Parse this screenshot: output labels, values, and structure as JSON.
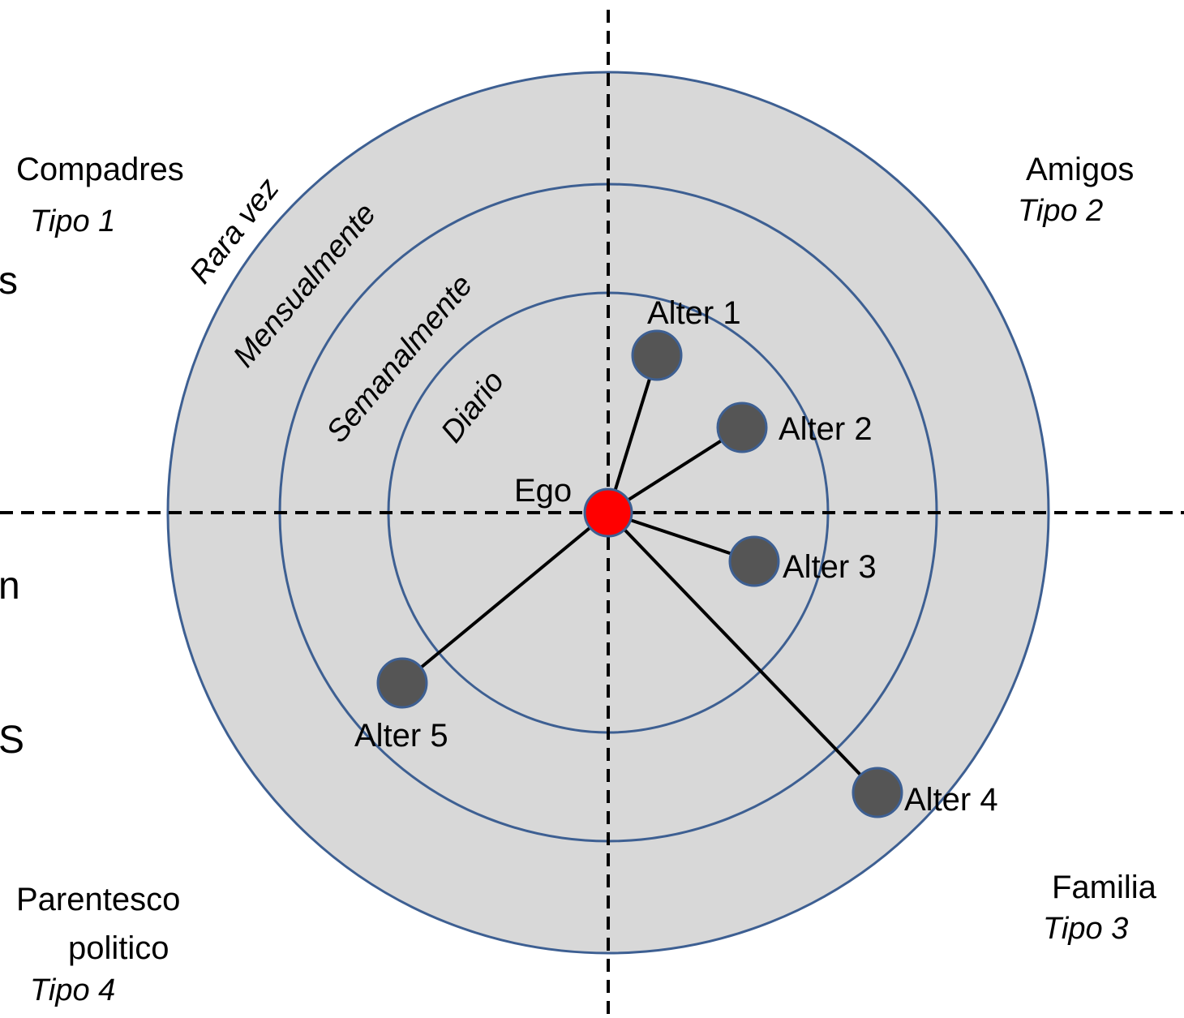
{
  "quadrants": {
    "top_left": {
      "name": "Compadres",
      "type": "Tipo 1"
    },
    "top_right": {
      "name": "Amigos",
      "type": "Tipo 2"
    },
    "bottom_right": {
      "name": "Familia",
      "type": "Tipo 3"
    },
    "bottom_left": {
      "name_line1": "Parentesco",
      "name_line2": "politico",
      "type": "Tipo 4"
    }
  },
  "rings": {
    "outer": "Rara vez",
    "third": "Mensualmente",
    "second": "Semanalmente",
    "inner": "Diario"
  },
  "nodes": {
    "ego": "Ego",
    "alter1": "Alter 1",
    "alter2": "Alter 2",
    "alter3": "Alter 3",
    "alter4": "Alter 4",
    "alter5": "Alter 5"
  },
  "edge_fragments": {
    "s1": "s",
    "n": "n",
    "s2": "S"
  },
  "colors": {
    "ring_fill": "#d8d8d8",
    "ring_stroke": "#3d5f92",
    "ego": "#ff0000",
    "alter": "#555555"
  }
}
